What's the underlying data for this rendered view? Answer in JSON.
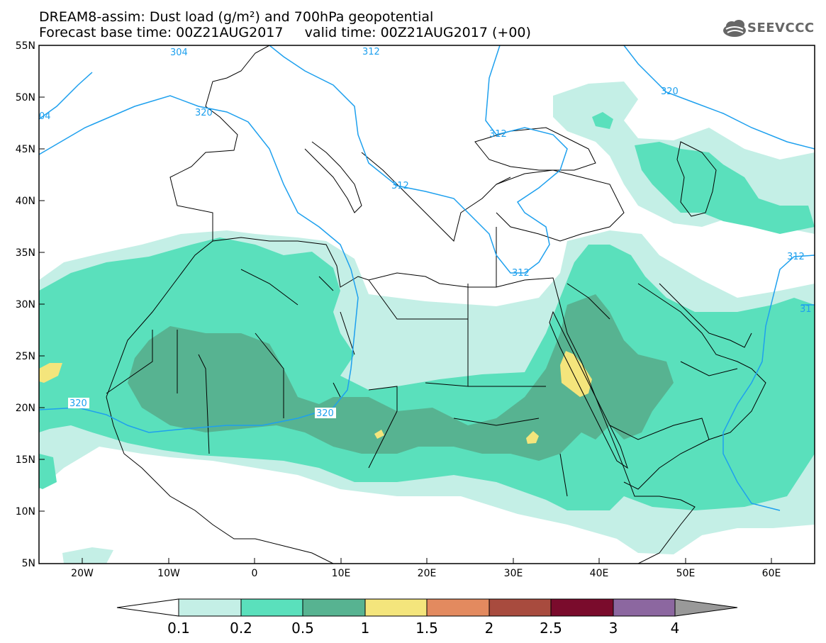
{
  "header": {
    "title_line1": "DREAM8-assim: Dust load (g/m²) and 700hPa geopotential",
    "title_line2": "Forecast base time: 00Z21AUG2017     valid time: 00Z21AUG2017 (+00)"
  },
  "logo": {
    "text": "SEEVCCC",
    "icon": "cloud-icon"
  },
  "map": {
    "lat_labels": [
      "55N",
      "50N",
      "45N",
      "40N",
      "35N",
      "30N",
      "25N",
      "20N",
      "15N",
      "10N",
      "5N"
    ],
    "lon_labels": [
      "20W",
      "10W",
      "0",
      "10E",
      "20E",
      "30E",
      "40E",
      "50E",
      "60E"
    ],
    "contour_labels": [
      "320",
      "320",
      "312",
      "312",
      "312",
      "312",
      "320",
      "320",
      "312",
      "31",
      "04",
      "304"
    ],
    "colors": {
      "c1": "#c4efe6",
      "c2": "#5ae0bc",
      "c3": "#57b391",
      "c4": "#f4e57c",
      "coast": "#000000",
      "contour": "#1ea0ee"
    }
  },
  "colorbar": {
    "labels": [
      "0.1",
      "0.2",
      "0.5",
      "1",
      "1.5",
      "2",
      "2.5",
      "3",
      "4"
    ],
    "colors": [
      "#c4efe6",
      "#5ae0bc",
      "#57b391",
      "#f4e57c",
      "#e38a5f",
      "#a84b3e",
      "#7a0b2c",
      "#8c67a0"
    ]
  }
}
